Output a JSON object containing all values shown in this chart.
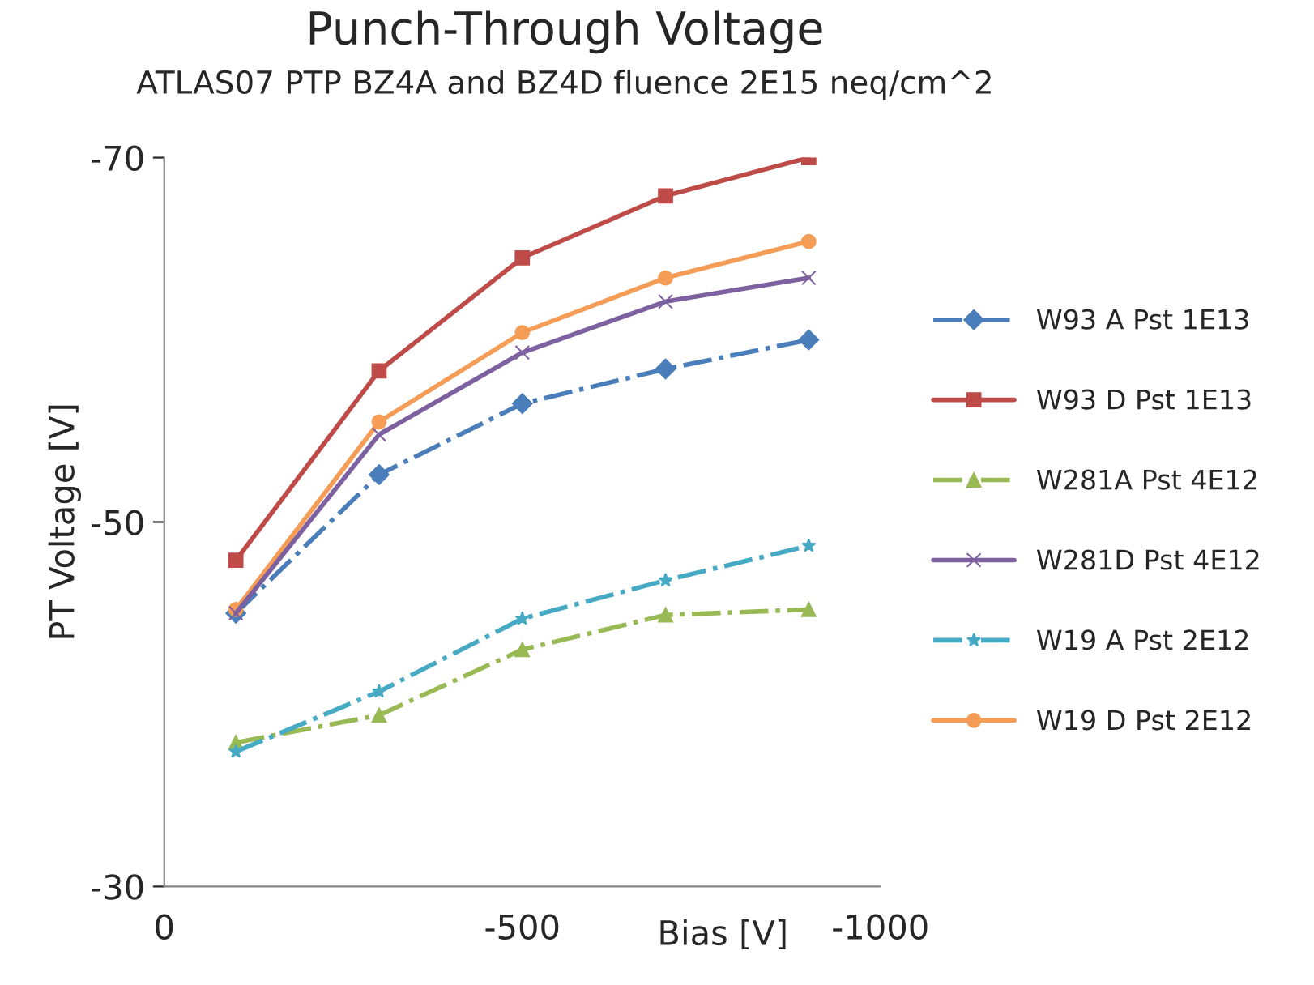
{
  "chart_data": {
    "type": "line",
    "title": "Punch-Through Voltage",
    "subtitle": "ATLAS07 PTP BZ4A and BZ4D fluence 2E15 neq/cm^2",
    "xlabel": "Bias [V]",
    "ylabel": "PT Voltage [V]",
    "x": [
      -100,
      -300,
      -500,
      -700,
      -900
    ],
    "xlim": [
      0,
      -1000
    ],
    "xticks": [
      0,
      -500,
      -1000
    ],
    "ylim": [
      -30,
      -70
    ],
    "yticks": [
      -30,
      -50,
      -70
    ],
    "grid": false,
    "legend": "right",
    "series": [
      {
        "name": "W93 A Pst 1E13",
        "color": "#4a7ebb",
        "marker": "diamond",
        "line_style": "dashed",
        "values": [
          -45.0,
          -52.6,
          -56.5,
          -58.4,
          -60.0
        ]
      },
      {
        "name": "W93 D Pst 1E13",
        "color": "#be4b48",
        "marker": "square",
        "line_style": "solid",
        "values": [
          -47.9,
          -58.3,
          -64.5,
          -67.9,
          -70.0
        ]
      },
      {
        "name": "W281A Pst 4E12",
        "color": "#98b954",
        "marker": "triangle",
        "line_style": "dashed",
        "values": [
          -37.9,
          -39.4,
          -43.0,
          -44.9,
          -45.2
        ]
      },
      {
        "name": "W281D Pst 4E12",
        "color": "#7d60a0",
        "marker": "cross",
        "line_style": "solid",
        "values": [
          -45.0,
          -54.8,
          -59.3,
          -62.1,
          -63.4
        ]
      },
      {
        "name": "W19 A Pst 2E12",
        "color": "#46aac5",
        "marker": "star",
        "line_style": "dashed",
        "values": [
          -37.4,
          -40.7,
          -44.7,
          -46.8,
          -48.7
        ]
      },
      {
        "name": "W19 D Pst 2E12",
        "color": "#f59d56",
        "marker": "circle",
        "line_style": "solid",
        "values": [
          -45.2,
          -55.5,
          -60.4,
          -63.4,
          -65.4
        ]
      }
    ]
  }
}
